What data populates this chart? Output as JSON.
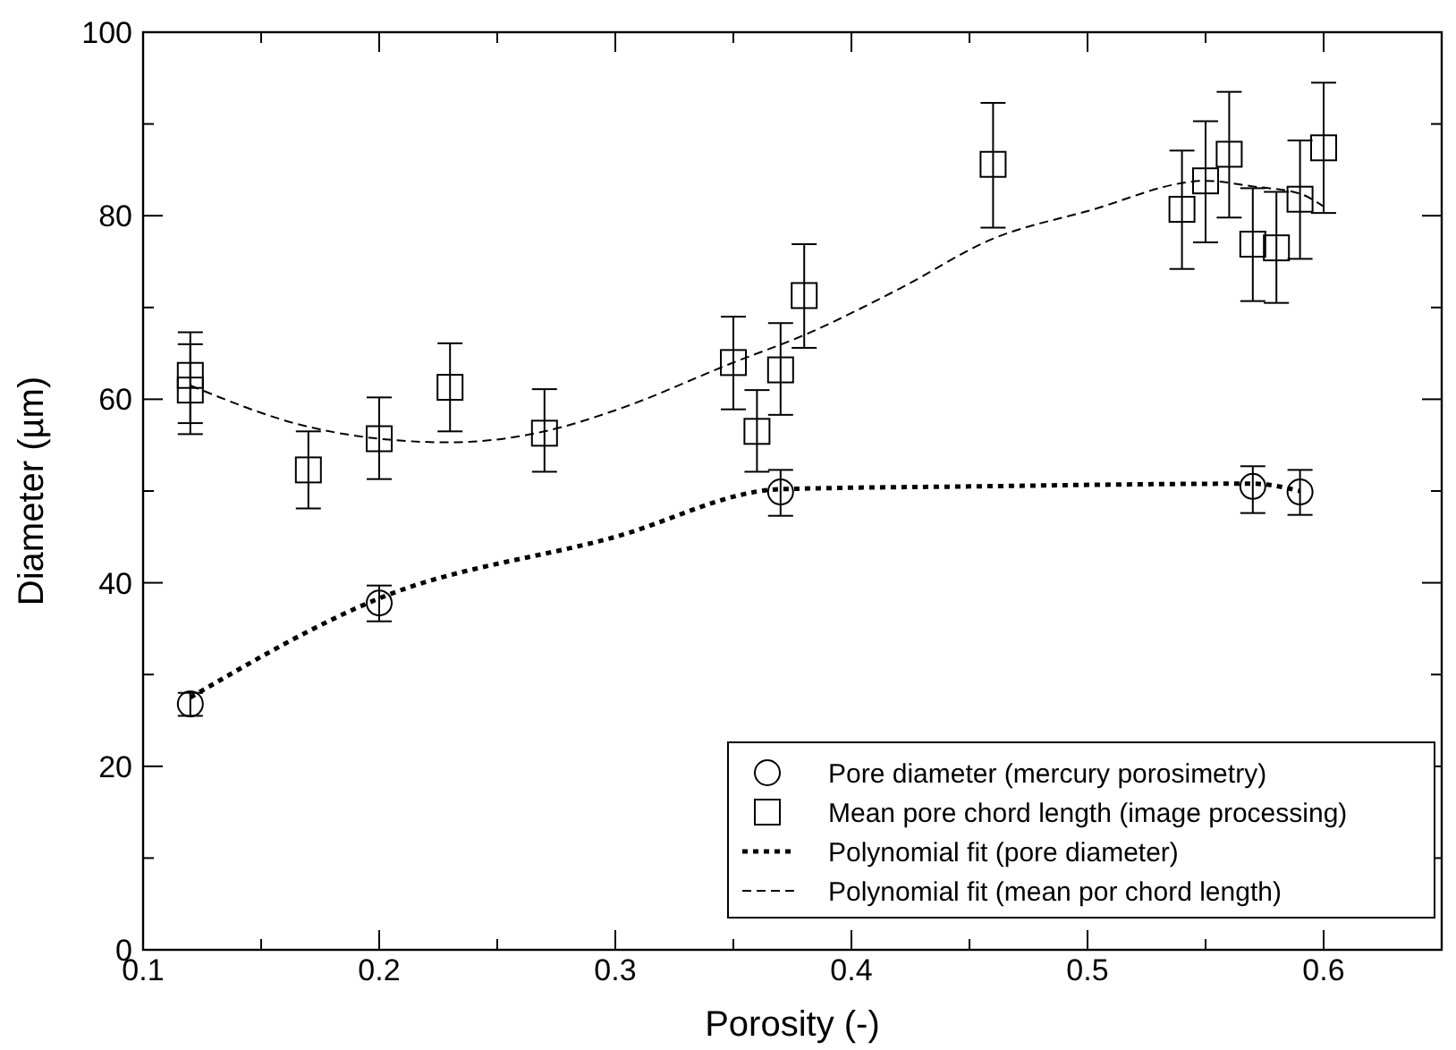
{
  "chart_data": {
    "type": "scatter",
    "xlabel": "Porosity (-)",
    "ylabel": "Diameter (µm)",
    "xlim": [
      0.1,
      0.65
    ],
    "ylim": [
      0,
      100
    ],
    "xticks": [
      0.1,
      {
        "value": 0.15,
        "label": null
      },
      0.2,
      {
        "value": 0.25,
        "label": null
      },
      0.3,
      {
        "value": 0.35,
        "label": null
      },
      0.4,
      {
        "value": 0.45,
        "label": null
      },
      0.5,
      {
        "value": 0.55,
        "label": null
      },
      0.6
    ],
    "yticks": [
      0,
      {
        "value": 10,
        "label": null
      },
      20,
      {
        "value": 30,
        "label": null
      },
      40,
      {
        "value": 50,
        "label": null
      },
      60,
      {
        "value": 70,
        "label": null
      },
      80,
      {
        "value": 90,
        "label": null
      },
      100
    ],
    "grid": false,
    "legend": "bottom right",
    "series": [
      {
        "name": "Pore diameter (mercury porosimetry)",
        "marker": "circle",
        "color": "#000000",
        "x": [
          0.12,
          0.2,
          0.37,
          0.57,
          0.59
        ],
        "values": [
          26.8,
          37.8,
          49.9,
          50.5,
          49.9
        ],
        "errors": [
          [
            25.5,
            28
          ],
          [
            35.8,
            39.7
          ],
          [
            47.3,
            52.3
          ],
          [
            47.6,
            52.7
          ],
          [
            47.4,
            52.3
          ]
        ]
      },
      {
        "name": "Mean pore chord length (image processing)",
        "marker": "square",
        "color": "#000000",
        "x": [
          0.12,
          0.12,
          0.17,
          0.2,
          0.23,
          0.27,
          0.35,
          0.36,
          0.37,
          0.38,
          0.46,
          0.54,
          0.55,
          0.56,
          0.57,
          0.58,
          0.59,
          0.6
        ],
        "values": [
          62.6,
          61,
          52.3,
          55.7,
          61.3,
          56.3,
          64,
          56.5,
          63.2,
          71.3,
          85.6,
          80.7,
          83.8,
          86.7,
          76.9,
          76.5,
          81.8,
          87.4
        ],
        "errors": [
          [
            57.4,
            67.3
          ],
          [
            56.2,
            66
          ],
          [
            48.1,
            56.5
          ],
          [
            51.3,
            60.2
          ],
          [
            56.5,
            66.1
          ],
          [
            52.1,
            61.1
          ],
          [
            58.9,
            69
          ],
          [
            52.1,
            61
          ],
          [
            58.3,
            68.3
          ],
          [
            65.6,
            76.9
          ],
          [
            78.7,
            92.3
          ],
          [
            74.2,
            87.1
          ],
          [
            77.1,
            90.3
          ],
          [
            79.8,
            93.5
          ],
          [
            70.7,
            83
          ],
          [
            70.5,
            82.6
          ],
          [
            75.3,
            88.2
          ],
          [
            80.3,
            94.5
          ]
        ]
      },
      {
        "name": "Polynomial fit (pore diameter)",
        "type": "line",
        "line_style": "dotted",
        "color": "#000000",
        "x": [
          0.12,
          0.2,
          0.3,
          0.37,
          0.45,
          0.57,
          0.59
        ],
        "values": [
          27.5,
          38.3,
          45,
          50.2,
          50.5,
          50.8,
          50
        ]
      },
      {
        "name": "Polynomial fit (mean por chord length)",
        "type": "line",
        "line_style": "dashed",
        "color": "#000000",
        "x": [
          0.12,
          0.17,
          0.2,
          0.23,
          0.27,
          0.3,
          0.35,
          0.38,
          0.42,
          0.46,
          0.5,
          0.55,
          0.57,
          0.59,
          0.6
        ],
        "values": [
          61.5,
          57,
          55.7,
          55.3,
          56.5,
          58.8,
          64,
          67,
          72,
          77.5,
          80.5,
          83.8,
          83.2,
          82.4,
          81
        ]
      }
    ]
  }
}
